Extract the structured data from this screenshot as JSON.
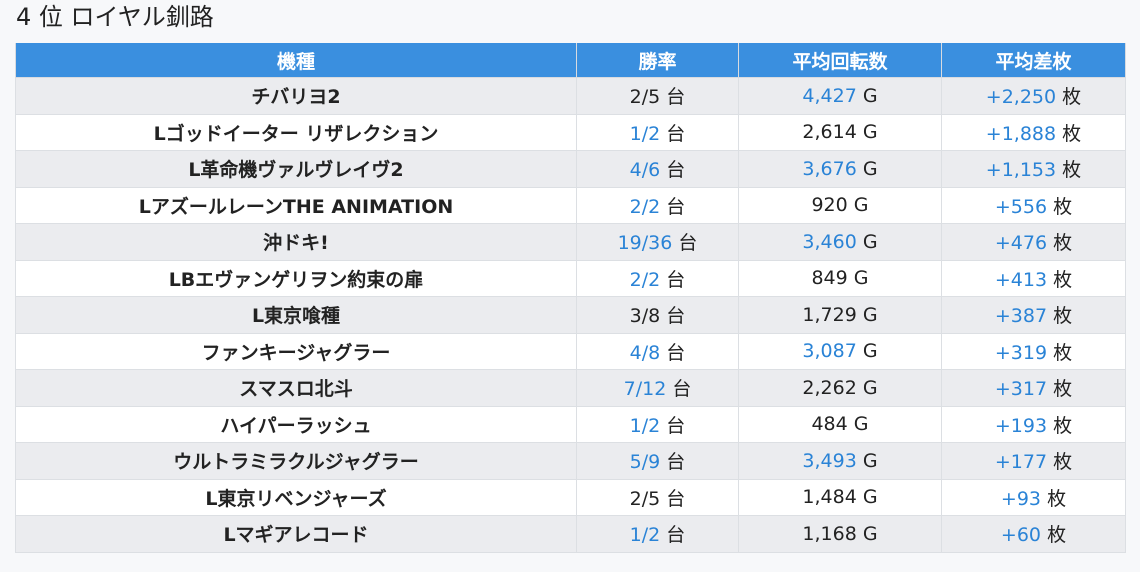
{
  "title": "4 位 ロイヤル釧路",
  "headers": {
    "machine": "機種",
    "win_rate": "勝率",
    "avg_spins": "平均回転数",
    "avg_diff": "平均差枚"
  },
  "units": {
    "machines": "台",
    "games": "G",
    "medals": "枚"
  },
  "colors": {
    "header_bg": "#3a8fdf",
    "highlight_text": "#2a83d6",
    "odd_row_bg": "#ebecef",
    "even_row_bg": "#ffffff"
  },
  "rows": [
    {
      "machine": "チバリヨ2",
      "win_rate": "2/5",
      "win_rate_highlight": false,
      "avg_spins": "4,427",
      "avg_spins_highlight": true,
      "avg_diff": "+2,250",
      "avg_diff_highlight": true
    },
    {
      "machine": "Lゴッドイーター リザレクション",
      "win_rate": "1/2",
      "win_rate_highlight": true,
      "avg_spins": "2,614",
      "avg_spins_highlight": false,
      "avg_diff": "+1,888",
      "avg_diff_highlight": true
    },
    {
      "machine": "L革命機ヴァルヴレイヴ2",
      "win_rate": "4/6",
      "win_rate_highlight": true,
      "avg_spins": "3,676",
      "avg_spins_highlight": true,
      "avg_diff": "+1,153",
      "avg_diff_highlight": true
    },
    {
      "machine": "LアズールレーンTHE ANIMATION",
      "win_rate": "2/2",
      "win_rate_highlight": true,
      "avg_spins": "920",
      "avg_spins_highlight": false,
      "avg_diff": "+556",
      "avg_diff_highlight": true
    },
    {
      "machine": "沖ドキ!",
      "win_rate": "19/36",
      "win_rate_highlight": true,
      "avg_spins": "3,460",
      "avg_spins_highlight": true,
      "avg_diff": "+476",
      "avg_diff_highlight": true
    },
    {
      "machine": "LBエヴァンゲリヲン約束の扉",
      "win_rate": "2/2",
      "win_rate_highlight": true,
      "avg_spins": "849",
      "avg_spins_highlight": false,
      "avg_diff": "+413",
      "avg_diff_highlight": true
    },
    {
      "machine": "L東京喰種",
      "win_rate": "3/8",
      "win_rate_highlight": false,
      "avg_spins": "1,729",
      "avg_spins_highlight": false,
      "avg_diff": "+387",
      "avg_diff_highlight": true
    },
    {
      "machine": "ファンキージャグラー",
      "win_rate": "4/8",
      "win_rate_highlight": true,
      "avg_spins": "3,087",
      "avg_spins_highlight": true,
      "avg_diff": "+319",
      "avg_diff_highlight": true
    },
    {
      "machine": "スマスロ北斗",
      "win_rate": "7/12",
      "win_rate_highlight": true,
      "avg_spins": "2,262",
      "avg_spins_highlight": false,
      "avg_diff": "+317",
      "avg_diff_highlight": true
    },
    {
      "machine": "ハイパーラッシュ",
      "win_rate": "1/2",
      "win_rate_highlight": true,
      "avg_spins": "484",
      "avg_spins_highlight": false,
      "avg_diff": "+193",
      "avg_diff_highlight": true
    },
    {
      "machine": "ウルトラミラクルジャグラー",
      "win_rate": "5/9",
      "win_rate_highlight": true,
      "avg_spins": "3,493",
      "avg_spins_highlight": true,
      "avg_diff": "+177",
      "avg_diff_highlight": true
    },
    {
      "machine": "L東京リベンジャーズ",
      "win_rate": "2/5",
      "win_rate_highlight": false,
      "avg_spins": "1,484",
      "avg_spins_highlight": false,
      "avg_diff": "+93",
      "avg_diff_highlight": true
    },
    {
      "machine": "Lマギアレコード",
      "win_rate": "1/2",
      "win_rate_highlight": true,
      "avg_spins": "1,168",
      "avg_spins_highlight": false,
      "avg_diff": "+60",
      "avg_diff_highlight": true
    }
  ]
}
